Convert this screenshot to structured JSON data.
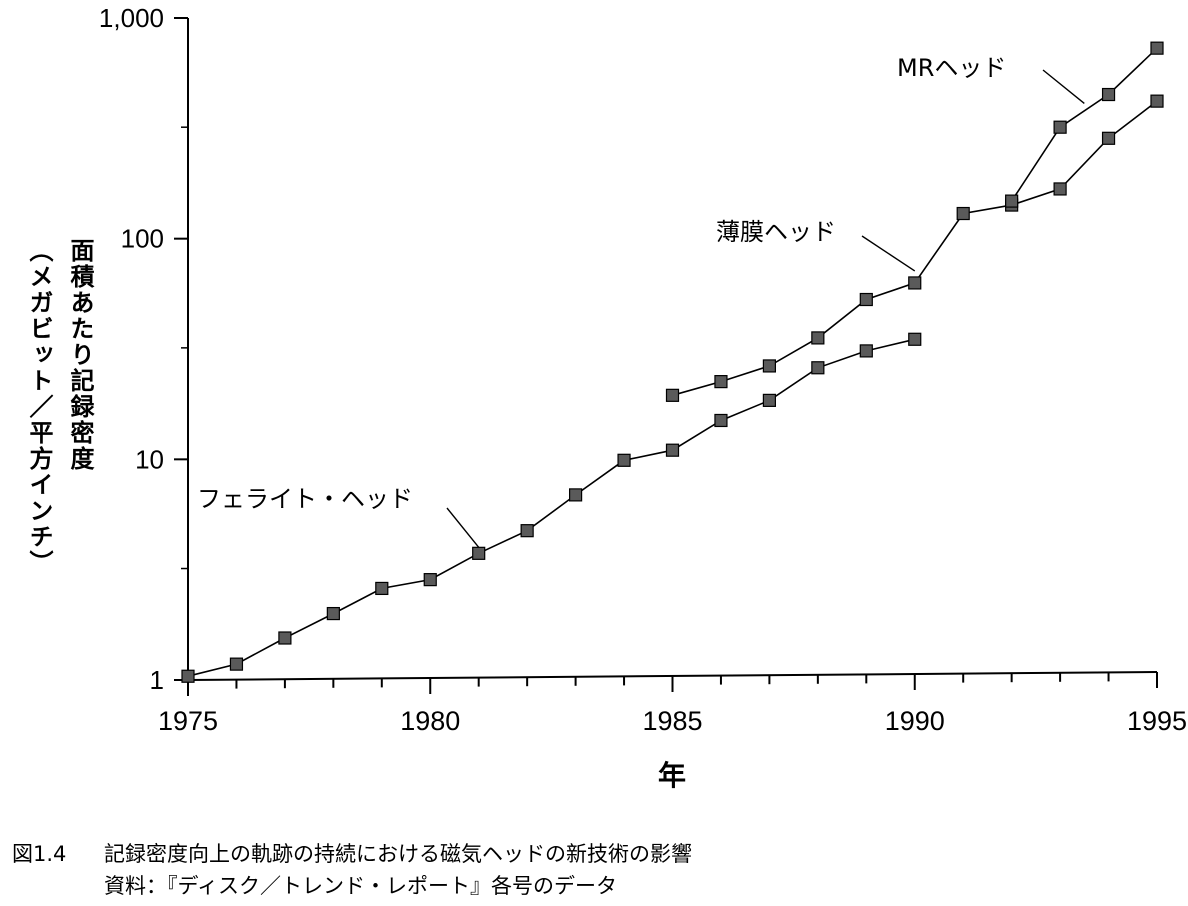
{
  "chart_data": {
    "type": "line",
    "y_scale": "log",
    "xlim": [
      1975,
      1995
    ],
    "ylim": [
      1,
      1000
    ],
    "x_ticks": [
      1975,
      1980,
      1985,
      1990,
      1995
    ],
    "x_tick_labels": [
      "1975",
      "1980",
      "1985",
      "1990",
      "1995"
    ],
    "y_ticks": [
      1,
      10,
      100,
      1000
    ],
    "y_tick_labels": [
      "1",
      "10",
      "100",
      "1,000"
    ],
    "xlabel": "年",
    "ylabel_lines": [
      "面積あたり記録密度",
      "（メガビット／平方インチ）"
    ],
    "grid": false,
    "series": [
      {
        "name": "フェライト・ヘッド",
        "x": [
          1975,
          1976,
          1977,
          1978,
          1979,
          1980,
          1981,
          1982,
          1983,
          1984,
          1985,
          1986,
          1987,
          1988,
          1989,
          1990
        ],
        "y": [
          1.04,
          1.18,
          1.55,
          2.0,
          2.6,
          2.85,
          3.75,
          4.75,
          6.9,
          9.9,
          11,
          15,
          18.5,
          26,
          31,
          35
        ]
      },
      {
        "name": "薄膜ヘッド",
        "x": [
          1985,
          1986,
          1987,
          1988,
          1989,
          1990,
          1991,
          1992,
          1993,
          1994,
          1995
        ],
        "y": [
          19.5,
          22.5,
          26.5,
          35.5,
          53,
          63,
          130,
          142,
          168,
          285,
          420
        ]
      },
      {
        "name": "MRヘッド",
        "x": [
          1992,
          1993,
          1994,
          1995
        ],
        "y": [
          148,
          320,
          450,
          730
        ]
      }
    ],
    "annotations": [
      {
        "text": "フェライト・ヘッド",
        "points_to": [
          1981,
          3.75
        ]
      },
      {
        "text": "薄膜ヘッド",
        "points_to": [
          1990,
          63
        ]
      },
      {
        "text": "MRヘッド",
        "points_to": [
          1993.5,
          410
        ]
      }
    ]
  },
  "caption": {
    "figure_no": "図1.4",
    "title": "記録密度向上の軌跡の持続における磁気ヘッドの新技術の影響",
    "source": "資料：『ディスク／トレンド・レポート』各号のデータ"
  }
}
